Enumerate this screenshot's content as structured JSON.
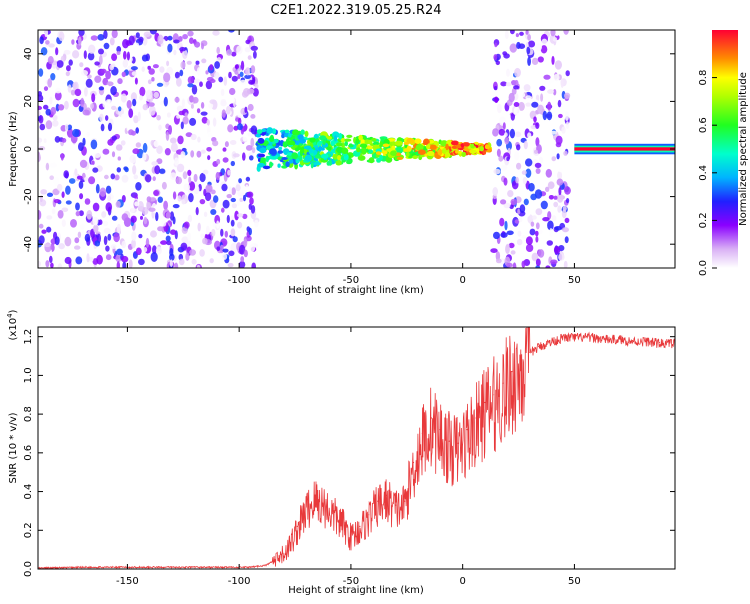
{
  "title": "C2E1.2022.319.05.25.R24",
  "chart_data": [
    {
      "type": "heatmap",
      "xlabel": "Height of straight line (km)",
      "ylabel": "Frequency (Hz)",
      "xlim": [
        -190,
        95
      ],
      "ylim": [
        -50,
        50
      ],
      "xticks": [
        -150,
        -100,
        -50,
        0,
        50
      ],
      "yticks": [
        -40,
        -20,
        0,
        20,
        40
      ],
      "xticklabels": [
        "-150",
        "-100",
        "-50",
        "0",
        "50"
      ],
      "yticklabels": [
        "-40",
        "-20",
        "0",
        "20",
        "40"
      ],
      "colorbar": {
        "label": "Normalized spectral amplitude",
        "range": [
          0,
          1
        ],
        "ticks": [
          0.0,
          0.2,
          0.4,
          0.6,
          0.8
        ],
        "ticklabels": [
          "0.0",
          "0.2",
          "0.4",
          "0.6",
          "0.8"
        ]
      },
      "regions": [
        {
          "x_start": -190,
          "x_end": -92,
          "pattern": "noise"
        },
        {
          "x_start": -92,
          "x_end": 12,
          "pattern": "band",
          "center_hz": 0
        },
        {
          "x_start": 14,
          "x_end": 47,
          "pattern": "noise"
        },
        {
          "x_start": 50,
          "x_end": 95,
          "pattern": "line",
          "center_hz": 0
        }
      ]
    },
    {
      "type": "line",
      "xlabel": "Height of straight line (km)",
      "ylabel": "SNR (10 * v/v)",
      "yscale_label_base": "(x10",
      "yscale_label_exp": "4",
      "yscale_label_close": ")",
      "xlim": [
        -190,
        95
      ],
      "ylim": [
        0,
        1.25
      ],
      "xticks": [
        -150,
        -100,
        -50,
        0,
        50
      ],
      "yticks": [
        0.0,
        0.2,
        0.4,
        0.6,
        0.8,
        1.0,
        1.2
      ],
      "xticklabels": [
        "-150",
        "-100",
        "-50",
        "0",
        "50"
      ],
      "yticklabels": [
        "0.0",
        "0.2",
        "0.4",
        "0.6",
        "0.8",
        "1.0",
        "1.2"
      ],
      "color": "#e8393b",
      "x": [
        -190,
        -170,
        -150,
        -130,
        -110,
        -95,
        -88,
        -82,
        -78,
        -74,
        -70,
        -66,
        -62,
        -58,
        -54,
        -50,
        -46,
        -42,
        -38,
        -34,
        -30,
        -26,
        -22,
        -18,
        -14,
        -10,
        -6,
        -2,
        2,
        6,
        10,
        14,
        18,
        22,
        26,
        30,
        34,
        40,
        46,
        52,
        58,
        64,
        70,
        76,
        82,
        88,
        95
      ],
      "y": [
        0.005,
        0.01,
        0.01,
        0.01,
        0.01,
        0.01,
        0.02,
        0.06,
        0.12,
        0.22,
        0.32,
        0.38,
        0.35,
        0.3,
        0.25,
        0.18,
        0.22,
        0.28,
        0.35,
        0.38,
        0.33,
        0.35,
        0.55,
        0.7,
        0.78,
        0.72,
        0.66,
        0.65,
        0.72,
        0.78,
        0.86,
        0.9,
        0.96,
        1.02,
        1.08,
        1.12,
        1.15,
        1.18,
        1.2,
        1.2,
        1.2,
        1.19,
        1.19,
        1.18,
        1.18,
        1.17,
        1.17
      ]
    }
  ]
}
